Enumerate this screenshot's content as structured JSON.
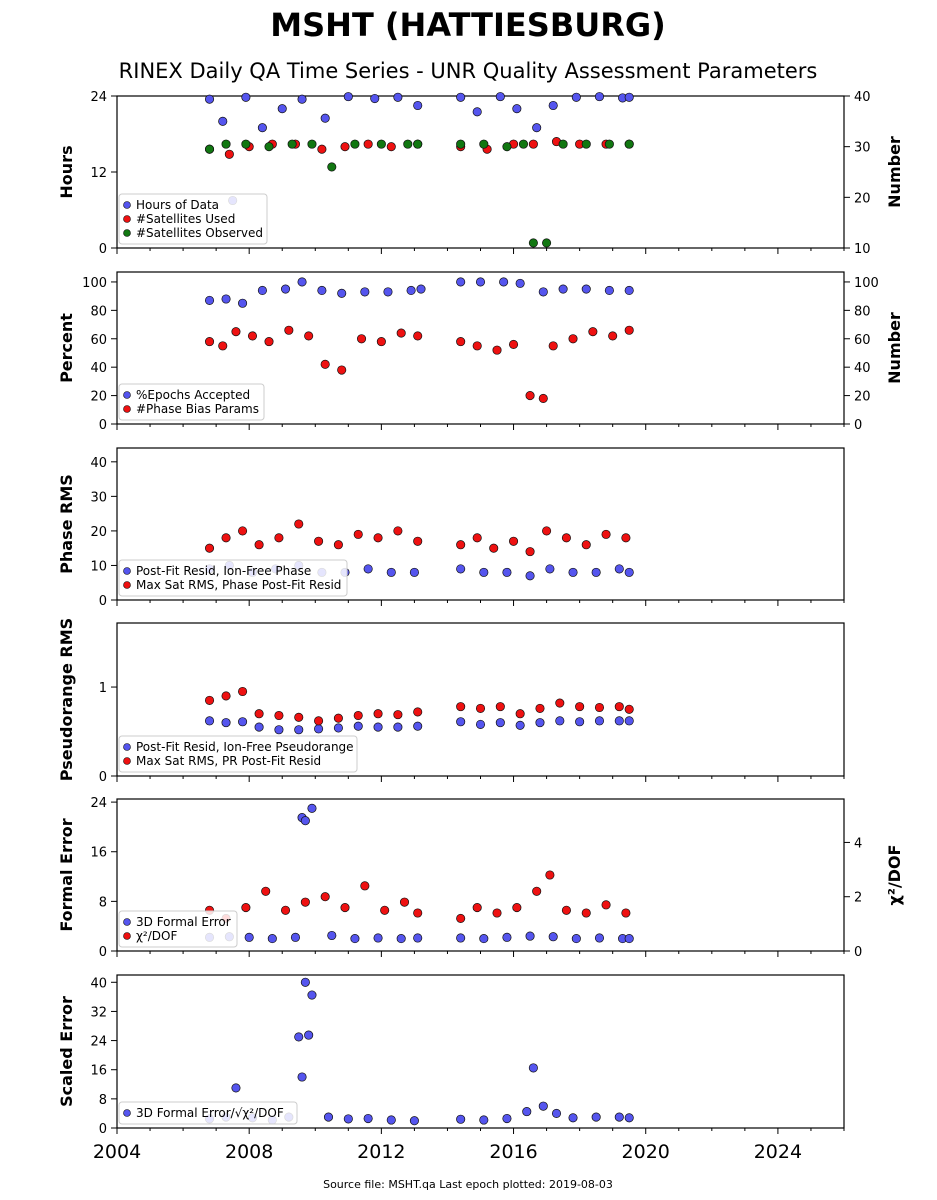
{
  "title": "MSHT (HATTIESBURG)",
  "subtitle": "RINEX Daily QA Time Series - UNR Quality Assessment Parameters",
  "footer": "Source file: MSHT.qa Last epoch plotted: 2019-08-03",
  "colors": {
    "blue": "#5555ee",
    "red": "#ee1111",
    "green": "#117711",
    "marker_edge": "#111111"
  },
  "chart_data": [
    {
      "type": "scatter",
      "panel": "hours",
      "ylabel": "Hours",
      "ylabel_right": "Number",
      "ylim": [
        0,
        24
      ],
      "yticks": [
        "0",
        "12",
        "24"
      ],
      "ylim_right": [
        10,
        40
      ],
      "yticks_right": [
        "10",
        "20",
        "30",
        "40"
      ],
      "legend_position": "bottom-left",
      "series": [
        {
          "name": "Hours of Data",
          "color": "#5555ee",
          "axis": "left",
          "x": [
            2006.8,
            2007.2,
            2007.5,
            2007.9,
            2008.4,
            2009.0,
            2009.6,
            2010.3,
            2011.0,
            2011.8,
            2012.5,
            2013.1,
            2014.4,
            2014.9,
            2015.6,
            2016.1,
            2016.7,
            2017.2,
            2017.9,
            2018.6,
            2019.3,
            2019.5
          ],
          "y": [
            23.5,
            20.0,
            7.5,
            23.8,
            19.0,
            22.0,
            23.5,
            20.5,
            23.9,
            23.6,
            23.8,
            22.5,
            23.8,
            21.5,
            23.9,
            22.0,
            19.0,
            22.5,
            23.8,
            23.9,
            23.7,
            23.8
          ]
        },
        {
          "name": "#Satellites Used",
          "color": "#ee1111",
          "axis": "right",
          "x": [
            2006.8,
            2007.4,
            2008.0,
            2008.7,
            2009.4,
            2010.2,
            2010.9,
            2011.6,
            2012.3,
            2013.1,
            2014.4,
            2015.2,
            2016.0,
            2016.6,
            2017.3,
            2018.0,
            2018.8,
            2019.5
          ],
          "y": [
            29.5,
            28.5,
            30.0,
            30.5,
            30.5,
            29.5,
            30.0,
            30.5,
            30.0,
            30.5,
            30.0,
            29.5,
            30.5,
            30.5,
            31.0,
            30.5,
            30.5,
            30.5
          ]
        },
        {
          "name": "#Satellites Observed",
          "color": "#117711",
          "axis": "right",
          "x": [
            2006.8,
            2007.3,
            2007.9,
            2008.6,
            2009.3,
            2009.9,
            2010.5,
            2011.2,
            2012.0,
            2012.8,
            2013.1,
            2014.4,
            2015.1,
            2015.8,
            2016.3,
            2016.6,
            2017.0,
            2017.5,
            2018.2,
            2018.9,
            2019.5
          ],
          "y": [
            29.5,
            30.5,
            30.5,
            30.0,
            30.5,
            30.5,
            26.0,
            30.5,
            30.5,
            30.5,
            30.5,
            30.5,
            30.5,
            30.0,
            30.5,
            11.0,
            11.0,
            30.5,
            30.5,
            30.5,
            30.5
          ]
        }
      ]
    },
    {
      "type": "scatter",
      "panel": "percent",
      "ylabel": "Percent",
      "ylabel_right": "Number",
      "ylim": [
        0,
        107
      ],
      "yticks": [
        "0",
        "20",
        "40",
        "60",
        "80",
        "100"
      ],
      "ylim_right": [
        0,
        107
      ],
      "yticks_right": [
        "0",
        "20",
        "40",
        "60",
        "80",
        "100"
      ],
      "legend_position": "bottom-left",
      "series": [
        {
          "name": "%Epochs Accepted",
          "color": "#5555ee",
          "axis": "left",
          "x": [
            2006.8,
            2007.3,
            2007.8,
            2008.4,
            2009.1,
            2009.6,
            2010.2,
            2010.8,
            2011.5,
            2012.2,
            2012.9,
            2013.2,
            2014.4,
            2015.0,
            2015.7,
            2016.2,
            2016.9,
            2017.5,
            2018.2,
            2018.9,
            2019.5
          ],
          "y": [
            87,
            88,
            85,
            94,
            95,
            100,
            94,
            92,
            93,
            93,
            94,
            95,
            100,
            100,
            100,
            99,
            93,
            95,
            95,
            94,
            94
          ]
        },
        {
          "name": "#Phase Bias Params",
          "color": "#ee1111",
          "axis": "right",
          "x": [
            2006.8,
            2007.2,
            2007.6,
            2008.1,
            2008.6,
            2009.2,
            2009.8,
            2010.3,
            2010.8,
            2011.4,
            2012.0,
            2012.6,
            2013.1,
            2014.4,
            2014.9,
            2015.5,
            2016.0,
            2016.5,
            2016.9,
            2017.2,
            2017.8,
            2018.4,
            2019.0,
            2019.5
          ],
          "y": [
            58,
            55,
            65,
            62,
            58,
            66,
            62,
            42,
            38,
            60,
            58,
            64,
            62,
            58,
            55,
            52,
            56,
            20,
            18,
            55,
            60,
            65,
            62,
            66
          ]
        }
      ]
    },
    {
      "type": "scatter",
      "panel": "phase-rms",
      "ylabel": "Phase RMS",
      "ylim": [
        0,
        44
      ],
      "yticks": [
        "0",
        "10",
        "20",
        "30",
        "40"
      ],
      "legend_position": "bottom-left",
      "series": [
        {
          "name": "Post-Fit Resid, Ion-Free Phase",
          "color": "#5555ee",
          "axis": "left",
          "x": [
            2006.8,
            2007.4,
            2008.1,
            2008.8,
            2009.5,
            2010.2,
            2010.9,
            2011.6,
            2012.3,
            2013.0,
            2014.4,
            2015.1,
            2015.8,
            2016.5,
            2017.1,
            2017.8,
            2018.5,
            2019.2,
            2019.5
          ],
          "y": [
            9,
            10,
            8,
            9,
            10,
            8,
            8,
            9,
            8,
            8,
            9,
            8,
            8,
            7,
            9,
            8,
            8,
            9,
            8
          ]
        },
        {
          "name": "Max Sat RMS, Phase Post-Fit Resid",
          "color": "#ee1111",
          "axis": "left",
          "x": [
            2006.8,
            2007.3,
            2007.8,
            2008.3,
            2008.9,
            2009.5,
            2010.1,
            2010.7,
            2011.3,
            2011.9,
            2012.5,
            2013.1,
            2014.4,
            2014.9,
            2015.4,
            2016.0,
            2016.5,
            2017.0,
            2017.6,
            2018.2,
            2018.8,
            2019.4
          ],
          "y": [
            15,
            18,
            20,
            16,
            18,
            22,
            17,
            16,
            19,
            18,
            20,
            17,
            16,
            18,
            15,
            17,
            14,
            20,
            18,
            16,
            19,
            18
          ]
        }
      ]
    },
    {
      "type": "scatter",
      "panel": "pseudorange-rms",
      "ylabel": "Pseudorange RMS",
      "ylim": [
        0,
        1.72
      ],
      "yticks": [
        "0",
        "1"
      ],
      "legend_position": "bottom-left",
      "series": [
        {
          "name": "Post-Fit Resid, Ion-Free Pseudorange",
          "color": "#5555ee",
          "axis": "left",
          "x": [
            2006.8,
            2007.3,
            2007.8,
            2008.3,
            2008.9,
            2009.5,
            2010.1,
            2010.7,
            2011.3,
            2011.9,
            2012.5,
            2013.1,
            2014.4,
            2015.0,
            2015.6,
            2016.2,
            2016.8,
            2017.4,
            2018.0,
            2018.6,
            2019.2,
            2019.5
          ],
          "y": [
            0.62,
            0.6,
            0.61,
            0.55,
            0.52,
            0.52,
            0.53,
            0.54,
            0.56,
            0.55,
            0.55,
            0.56,
            0.61,
            0.58,
            0.6,
            0.57,
            0.6,
            0.62,
            0.61,
            0.62,
            0.62,
            0.62
          ]
        },
        {
          "name": "Max Sat RMS, PR Post-Fit Resid",
          "color": "#ee1111",
          "axis": "left",
          "x": [
            2006.8,
            2007.3,
            2007.8,
            2008.3,
            2008.9,
            2009.5,
            2010.1,
            2010.7,
            2011.3,
            2011.9,
            2012.5,
            2013.1,
            2014.4,
            2015.0,
            2015.6,
            2016.2,
            2016.8,
            2017.4,
            2018.0,
            2018.6,
            2019.2,
            2019.5
          ],
          "y": [
            0.85,
            0.9,
            0.95,
            0.7,
            0.68,
            0.66,
            0.62,
            0.65,
            0.68,
            0.7,
            0.69,
            0.72,
            0.78,
            0.76,
            0.78,
            0.7,
            0.76,
            0.82,
            0.78,
            0.77,
            0.78,
            0.75
          ]
        }
      ]
    },
    {
      "type": "scatter",
      "panel": "formal-error",
      "ylabel": "Formal Error",
      "ylabel_right": "χ²/DOF",
      "ylim": [
        0,
        24.5
      ],
      "yticks": [
        "0",
        "8",
        "16",
        "24"
      ],
      "ylim_right": [
        0,
        5.6
      ],
      "yticks_right": [
        "0",
        "2",
        "4"
      ],
      "legend_position": "bottom-left",
      "series": [
        {
          "name": "3D Formal Error",
          "color": "#5555ee",
          "axis": "left",
          "x": [
            2006.8,
            2007.4,
            2008.0,
            2008.7,
            2009.4,
            2009.6,
            2009.7,
            2009.9,
            2010.5,
            2011.2,
            2011.9,
            2012.6,
            2013.1,
            2014.4,
            2015.1,
            2015.8,
            2016.5,
            2017.2,
            2017.9,
            2018.6,
            2019.3,
            2019.5
          ],
          "y": [
            2.2,
            2.3,
            2.2,
            2.0,
            2.2,
            21.5,
            21.0,
            23.0,
            2.5,
            2.0,
            2.1,
            2.0,
            2.1,
            2.1,
            2.0,
            2.2,
            2.4,
            2.3,
            2.0,
            2.1,
            2.0,
            2.0
          ]
        },
        {
          "name": "χ²/DOF",
          "color": "#ee1111",
          "axis": "right",
          "x": [
            2006.8,
            2007.3,
            2007.9,
            2008.5,
            2009.1,
            2009.7,
            2010.3,
            2010.9,
            2011.5,
            2012.1,
            2012.7,
            2013.1,
            2014.4,
            2014.9,
            2015.5,
            2016.1,
            2016.7,
            2017.1,
            2017.6,
            2018.2,
            2018.8,
            2019.4
          ],
          "y": [
            1.5,
            1.2,
            1.6,
            2.2,
            1.5,
            1.8,
            2.0,
            1.6,
            2.4,
            1.5,
            1.8,
            1.4,
            1.2,
            1.6,
            1.4,
            1.6,
            2.2,
            2.8,
            1.5,
            1.4,
            1.7,
            1.4
          ]
        }
      ]
    },
    {
      "type": "scatter",
      "panel": "scaled-error",
      "ylabel": "Scaled Error",
      "ylim": [
        0,
        42
      ],
      "yticks": [
        "0",
        "8",
        "16",
        "24",
        "32",
        "40"
      ],
      "legend_position": "bottom-left",
      "series": [
        {
          "name": "3D Formal Error/√χ²/DOF",
          "color": "#5555ee",
          "axis": "left",
          "x": [
            2006.8,
            2007.3,
            2007.6,
            2008.1,
            2008.7,
            2009.2,
            2009.5,
            2009.6,
            2009.7,
            2009.8,
            2009.9,
            2010.4,
            2011.0,
            2011.6,
            2012.3,
            2013.0,
            2014.4,
            2015.1,
            2015.8,
            2016.4,
            2016.6,
            2016.9,
            2017.3,
            2017.8,
            2018.5,
            2019.2,
            2019.5
          ],
          "y": [
            2.5,
            3.0,
            11.0,
            2.8,
            2.2,
            3.0,
            25.0,
            14.0,
            40.0,
            25.5,
            36.5,
            3.0,
            2.5,
            2.6,
            2.2,
            2.0,
            2.4,
            2.2,
            2.6,
            4.5,
            16.5,
            6.0,
            4.0,
            2.8,
            3.0,
            3.0,
            2.8
          ]
        }
      ]
    }
  ],
  "x_axis": {
    "xlim": [
      2004,
      2026
    ],
    "ticks": [
      "2004",
      "2008",
      "2012",
      "2016",
      "2020",
      "2024"
    ]
  }
}
